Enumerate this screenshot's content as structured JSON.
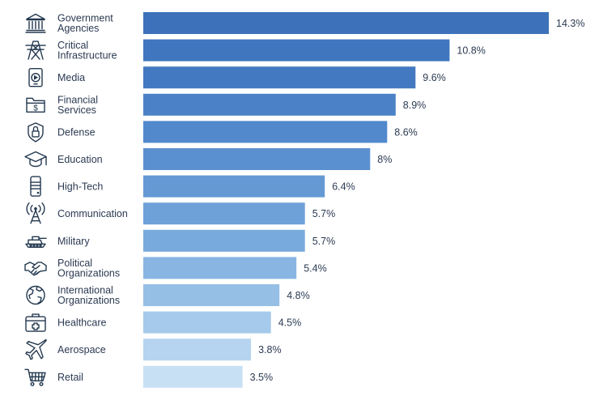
{
  "chart_data": {
    "type": "bar",
    "orientation": "horizontal",
    "categories": [
      [
        "Government",
        "Agencies"
      ],
      [
        "Critical",
        "Infrastructure"
      ],
      [
        "Media"
      ],
      [
        "Financial",
        "Services"
      ],
      [
        "Defense"
      ],
      [
        "Education"
      ],
      [
        "High-Tech"
      ],
      [
        "Communication"
      ],
      [
        "Military"
      ],
      [
        "Political",
        "Organizations"
      ],
      [
        "International",
        "Organizations"
      ],
      [
        "Healthcare"
      ],
      [
        "Aerospace"
      ],
      [
        "Retail"
      ]
    ],
    "values": [
      14.3,
      10.8,
      9.6,
      8.9,
      8.6,
      8.0,
      6.4,
      5.7,
      5.7,
      5.4,
      4.8,
      4.5,
      3.8,
      3.5
    ],
    "value_labels": [
      "14.3%",
      "10.8%",
      "9.6%",
      "8.9%",
      "8.6%",
      "8%",
      "6.4%",
      "5.7%",
      "5.7%",
      "5.4%",
      "4.8%",
      "4.5%",
      "3.8%",
      "3.5%"
    ],
    "icons": [
      "government-building-icon",
      "transmission-tower-icon",
      "tablet-media-icon",
      "money-folder-icon",
      "shield-lock-icon",
      "graduation-cap-icon",
      "server-tower-icon",
      "antenna-tower-icon",
      "tank-icon",
      "handshake-icon",
      "globe-icon",
      "medical-kit-icon",
      "airplane-icon",
      "shopping-cart-icon"
    ],
    "colors": [
      "#3d72ba",
      "#3f76be",
      "#4379c1",
      "#4b82c7",
      "#5289cc",
      "#5b90d0",
      "#6599d4",
      "#6fa1d9",
      "#79aadd",
      "#88b5e2",
      "#96bfe6",
      "#a6caeb",
      "#b6d4ef",
      "#c8e0f4"
    ],
    "xlim": [
      0,
      14.3
    ],
    "title": "",
    "xlabel": "",
    "ylabel": "",
    "grid": false,
    "legend": "none"
  }
}
